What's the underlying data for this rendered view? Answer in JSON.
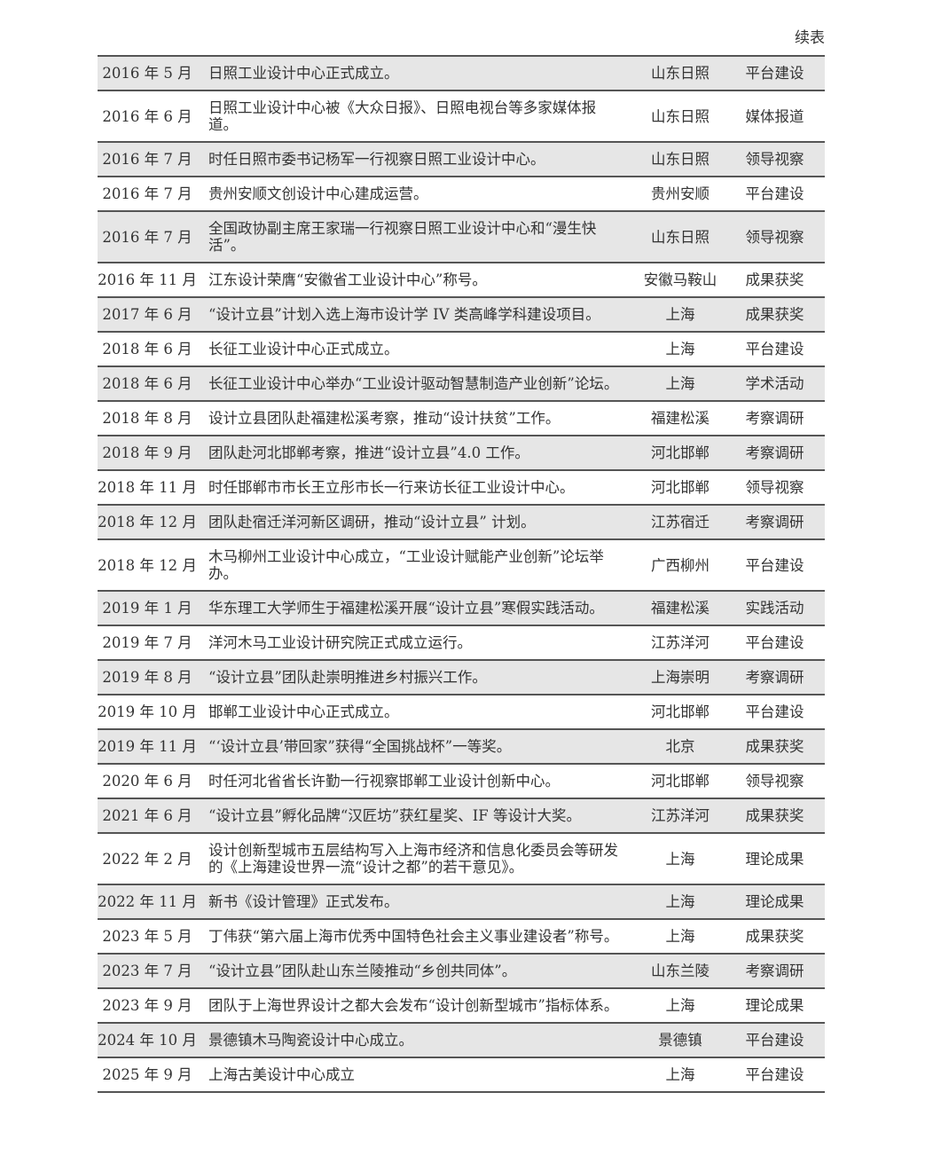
{
  "header": {
    "note": "续表"
  },
  "table": {
    "rows": [
      [
        "2016 年 5 月",
        "日照工业设计中心正式成立。",
        "山东日照",
        "平台建设"
      ],
      [
        "2016 年 6 月",
        "日照工业设计中心被《大众日报》、日照电视台等多家媒体报道。",
        "山东日照",
        "媒体报道"
      ],
      [
        "2016 年 7 月",
        "时任日照市委书记杨军一行视察日照工业设计中心。",
        "山东日照",
        "领导视察"
      ],
      [
        "2016 年 7 月",
        "贵州安顺文创设计中心建成运营。",
        "贵州安顺",
        "平台建设"
      ],
      [
        "2016 年 7 月",
        "全国政协副主席王家瑞一行视察日照工业设计中心和“漫生快活”。",
        "山东日照",
        "领导视察"
      ],
      [
        "2016 年 11 月",
        "江东设计荣膺“安徽省工业设计中心”称号。",
        "安徽马鞍山",
        "成果获奖"
      ],
      [
        "2017 年 6 月",
        "“设计立县”计划入选上海市设计学 IV 类高峰学科建设项目。",
        "上海",
        "成果获奖"
      ],
      [
        "2018 年 6 月",
        "长征工业设计中心正式成立。",
        "上海",
        "平台建设"
      ],
      [
        "2018 年 6 月",
        "长征工业设计中心举办“工业设计驱动智慧制造产业创新”论坛。",
        "上海",
        "学术活动"
      ],
      [
        "2018 年 8 月",
        "设计立县团队赴福建松溪考察，推动“设计扶贫”工作。",
        "福建松溪",
        "考察调研"
      ],
      [
        "2018 年 9 月",
        "团队赴河北邯郸考察，推进“设计立县”4.0 工作。",
        "河北邯郸",
        "考察调研"
      ],
      [
        "2018 年 11 月",
        "时任邯郸市市长王立彤市长一行来访长征工业设计中心。",
        "河北邯郸",
        "领导视察"
      ],
      [
        "2018 年 12 月",
        "团队赴宿迁洋河新区调研，推动“设计立县” 计划。",
        "江苏宿迁",
        "考察调研"
      ],
      [
        "2018 年 12 月",
        "木马柳州工业设计中心成立，“工业设计赋能产业创新”论坛举办。",
        "广西柳州",
        "平台建设"
      ],
      [
        "2019 年 1 月",
        "华东理工大学师生于福建松溪开展“设计立县”寒假实践活动。",
        "福建松溪",
        "实践活动"
      ],
      [
        "2019 年 7 月",
        "洋河木马工业设计研究院正式成立运行。",
        "江苏洋河",
        "平台建设"
      ],
      [
        "2019 年 8 月",
        "“设计立县”团队赴崇明推进乡村振兴工作。",
        "上海崇明",
        "考察调研"
      ],
      [
        "2019 年 10 月",
        "邯郸工业设计中心正式成立。",
        "河北邯郸",
        "平台建设"
      ],
      [
        "2019 年 11 月",
        "“‘设计立县’带回家”获得“全国挑战杯”一等奖。",
        "北京",
        "成果获奖"
      ],
      [
        "2020 年 6 月",
        "时任河北省省长许勤一行视察邯郸工业设计创新中心。",
        "河北邯郸",
        "领导视察"
      ],
      [
        "2021 年 6 月",
        "“设计立县”孵化品牌“汉匠坊”获红星奖、IF 等设计大奖。",
        "江苏洋河",
        "成果获奖"
      ],
      [
        "2022 年 2 月",
        "设计创新型城市五层结构写入上海市经济和信息化委员会等研发的《上海建设世界一流“设计之都”的若干意见》。",
        "上海",
        "理论成果"
      ],
      [
        "2022 年 11 月",
        "新书《设计管理》正式发布。",
        "上海",
        "理论成果"
      ],
      [
        "2023 年 5 月",
        "丁伟获“第六届上海市优秀中国特色社会主义事业建设者”称号。",
        "上海",
        "成果获奖"
      ],
      [
        "2023 年 7 月",
        "“设计立县”团队赴山东兰陵推动“乡创共同体”。",
        "山东兰陵",
        "考察调研"
      ],
      [
        "2023 年 9 月",
        "团队于上海世界设计之都大会发布“设计创新型城市”指标体系。",
        "上海",
        "理论成果"
      ],
      [
        "2024 年 10 月",
        "景德镇木马陶瓷设计中心成立。",
        "景德镇",
        "平台建设"
      ],
      [
        "2025 年 9 月",
        "上海古美设计中心成立",
        "上海",
        "平台建设"
      ]
    ]
  }
}
